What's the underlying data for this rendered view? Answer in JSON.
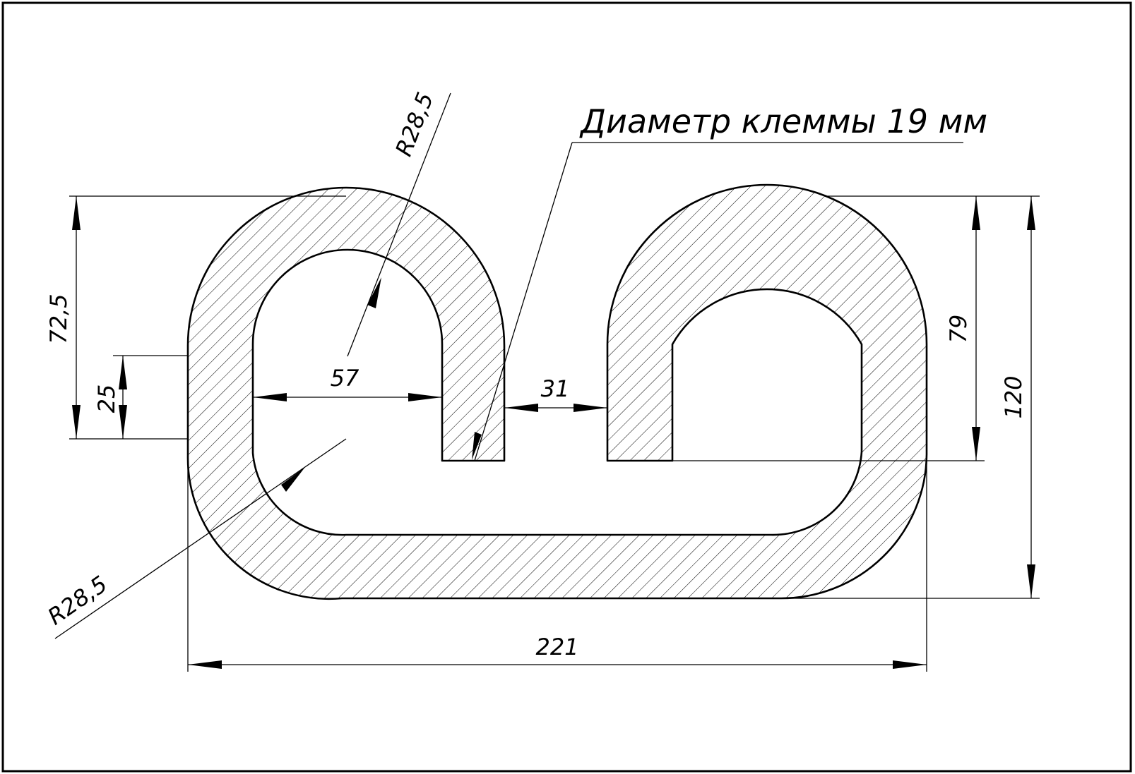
{
  "drawing": {
    "note": "Диаметр клеммы 19 мм",
    "dimensions": {
      "overall_width": "221",
      "overall_height": "120",
      "right_loop_height": "79",
      "left_upper_height": "72,5",
      "left_flat_segment": "25",
      "left_loop_inner_width": "57",
      "gap_between_loops": "31",
      "radius_upper": "R28,5",
      "radius_lower": "R28,5"
    },
    "colors": {
      "line": "#000000",
      "hatch": "#000000",
      "background": "#ffffff"
    }
  }
}
